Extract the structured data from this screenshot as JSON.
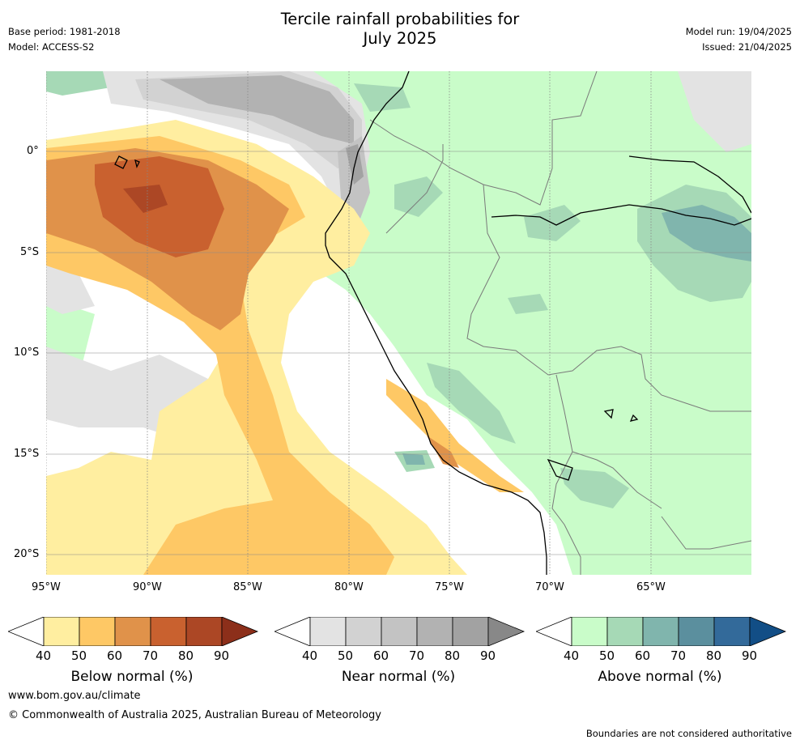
{
  "header": {
    "title_line1": "Tercile rainfall probabilities for",
    "title_line2": "July 2025",
    "base_period": "Base period: 1981-2018",
    "model": "Model: ACCESS-S2",
    "model_run": "Model run: 19/04/2025",
    "issued": "Issued: 21/04/2025"
  },
  "map": {
    "lon_ticks": [
      "95°W",
      "90°W",
      "85°W",
      "80°W",
      "75°W",
      "70°W",
      "65°W"
    ],
    "lat_ticks": [
      "0°",
      "5°S",
      "10°S",
      "15°S",
      "20°S"
    ]
  },
  "legends": [
    {
      "label": "Below normal (%)",
      "ticks": [
        "40",
        "50",
        "60",
        "70",
        "80",
        "90"
      ],
      "colors": [
        "#ffeea0",
        "#fec865",
        "#e0924a",
        "#c9612f",
        "#ac4725",
        "#8c2f1a"
      ]
    },
    {
      "label": "Near normal (%)",
      "ticks": [
        "40",
        "50",
        "60",
        "70",
        "80",
        "90"
      ],
      "colors": [
        "#e3e3e3",
        "#d2d2d2",
        "#c3c3c3",
        "#b2b2b2",
        "#a2a2a2",
        "#888888"
      ]
    },
    {
      "label": "Above normal (%)",
      "ticks": [
        "40",
        "50",
        "60",
        "70",
        "80",
        "90"
      ],
      "colors": [
        "#c9fcc9",
        "#a6d9b6",
        "#80b5ad",
        "#5b8f9e",
        "#336a9a",
        "#124e86"
      ]
    }
  ],
  "footer": {
    "url": "www.bom.gov.au/climate",
    "copyright": "© Commonwealth of Australia 2025, Australian Bureau of Meteorology",
    "disclaimer": "Boundaries are not considered authoritative"
  }
}
